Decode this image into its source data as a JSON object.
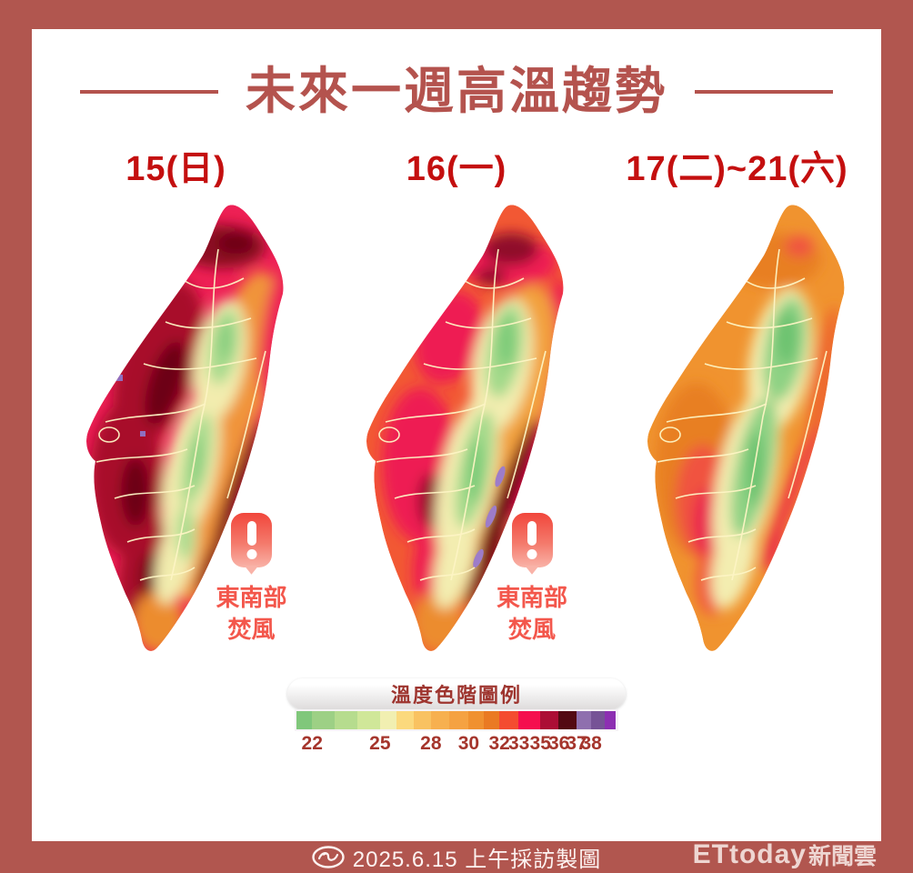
{
  "title": {
    "text": "未來一週高溫趨勢"
  },
  "theme": {
    "frame_color": "#b1564f",
    "title_color": "#b4534e",
    "date_color": "#c40f0f",
    "warning_color": "#f3574c",
    "legend_title_color": "#9e352f",
    "legend_number_color": "#a5352c",
    "footer_text_color": "#fdf3f1",
    "brand_color": "#eed6d2"
  },
  "panels": [
    {
      "date_label": "15(日)",
      "warning_line1": "東南部",
      "warning_line2": "焚風"
    },
    {
      "date_label": "16(一)",
      "warning_line1": "東南部",
      "warning_line2": "焚風"
    },
    {
      "date_label": "17(二)~21(六)"
    }
  ],
  "legend": {
    "title": "溫度色階圖例",
    "blocks": [
      {
        "color": "#80c77b",
        "width_pct": 4.9
      },
      {
        "color": "#9dd085",
        "width_pct": 7.05
      },
      {
        "color": "#b6dc8e",
        "width_pct": 7.05
      },
      {
        "color": "#d0e799",
        "width_pct": 7.05
      },
      {
        "color": "#f1efb1",
        "width_pct": 5.3
      },
      {
        "color": "#fbd97d",
        "width_pct": 5.3
      },
      {
        "color": "#f9c261",
        "width_pct": 5.3
      },
      {
        "color": "#f7b04f",
        "width_pct": 5.9
      },
      {
        "color": "#f5a242",
        "width_pct": 5.9
      },
      {
        "color": "#f09130",
        "width_pct": 4.8
      },
      {
        "color": "#ea7a23",
        "width_pct": 4.8
      },
      {
        "color": "#f44c30",
        "width_pct": 6.1
      },
      {
        "color": "#f50f4e",
        "width_pct": 6.7
      },
      {
        "color": "#ac0e35",
        "width_pct": 5.8
      },
      {
        "color": "#530a13",
        "width_pct": 5.5
      },
      {
        "color": "#8f6fae",
        "width_pct": 4.6
      },
      {
        "color": "#765396",
        "width_pct": 4.3
      },
      {
        "color": "#8d2fb2",
        "width_pct": 3.5
      }
    ],
    "ticks": [
      {
        "label": "22",
        "pos_pct": 4.9
      },
      {
        "label": "25",
        "pos_pct": 26.1
      },
      {
        "label": "28",
        "pos_pct": 42.0
      },
      {
        "label": "30",
        "pos_pct": 53.8
      },
      {
        "label": "32",
        "pos_pct": 63.4
      },
      {
        "label": "33",
        "pos_pct": 69.5
      },
      {
        "label": "35",
        "pos_pct": 76.2
      },
      {
        "label": "36",
        "pos_pct": 82.0
      },
      {
        "label": "37",
        "pos_pct": 87.5
      },
      {
        "label": "38",
        "pos_pct": 92.1
      }
    ]
  },
  "footer": {
    "credit": "2025.6.15 上午採訪製圖",
    "brand_en": "ETtoday",
    "brand_zh": "新聞雲"
  }
}
